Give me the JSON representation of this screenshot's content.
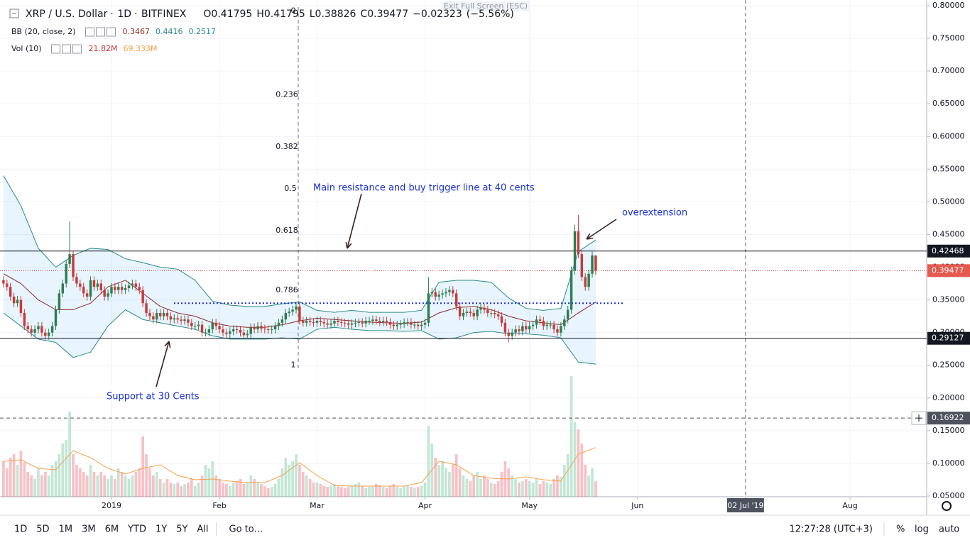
{
  "tooltip": "Exit Full Screen (ESC)",
  "chart_data": {
    "type": "candlestick",
    "title": "XRP / U.S. Dollar",
    "interval": "1D",
    "exchange": "BITFINEX",
    "header": {
      "o": {
        "value": 0.41795,
        "label": "O0.41795"
      },
      "h": {
        "value": 0.41795,
        "label": "H0.41795"
      },
      "l": {
        "value": 0.38826,
        "label": "L0.38826"
      },
      "c": {
        "value": 0.39477,
        "label": "C0.39477"
      },
      "change": {
        "value": -0.02323,
        "label": "−0.02323"
      },
      "pct": {
        "value": -5.56,
        "label": "(−5.56%)"
      }
    },
    "bb_legend": {
      "name": "BB (20, close, 2)",
      "middle": {
        "value": 0.3467,
        "label": "0.3467"
      },
      "upper": {
        "value": 0.4416,
        "label": "0.4416"
      },
      "lower": {
        "value": 0.2517,
        "label": "0.2517"
      }
    },
    "vol_legend": {
      "name": "Vol (10)",
      "value": {
        "value": 21.82,
        "label": "21.82M"
      },
      "ma": {
        "value": 69.333,
        "label": "69.333M"
      }
    },
    "up_color": "#2e7d4f",
    "down_color": "#c83a3a",
    "candles": {
      "open": [
        0.38,
        0.375,
        0.37,
        0.355,
        0.345,
        0.35,
        0.33,
        0.31,
        0.305,
        0.3,
        0.305,
        0.31,
        0.3,
        0.295,
        0.3,
        0.31,
        0.335,
        0.36,
        0.375,
        0.405,
        0.42,
        0.385,
        0.375,
        0.37,
        0.36,
        0.355,
        0.38,
        0.37,
        0.375,
        0.365,
        0.355,
        0.36,
        0.37,
        0.365,
        0.37,
        0.365,
        0.368,
        0.372,
        0.375,
        0.37,
        0.365,
        0.345,
        0.33,
        0.325,
        0.32,
        0.33,
        0.325,
        0.33,
        0.325,
        0.32,
        0.322,
        0.32,
        0.318,
        0.32,
        0.315,
        0.31,
        0.31,
        0.312,
        0.3,
        0.3,
        0.305,
        0.315,
        0.31,
        0.305,
        0.3,
        0.298,
        0.302,
        0.305,
        0.304,
        0.3,
        0.296,
        0.298,
        0.308,
        0.305,
        0.31,
        0.306,
        0.305,
        0.304,
        0.305,
        0.31,
        0.315,
        0.32,
        0.33,
        0.332,
        0.335,
        0.34,
        0.318,
        0.315,
        0.318,
        0.316,
        0.315,
        0.318,
        0.316,
        0.314,
        0.312,
        0.314,
        0.318,
        0.316,
        0.315,
        0.314,
        0.312,
        0.314,
        0.315,
        0.316,
        0.314,
        0.318,
        0.318,
        0.32,
        0.318,
        0.316,
        0.318,
        0.316,
        0.312,
        0.31,
        0.312,
        0.313,
        0.316,
        0.316,
        0.312,
        0.312,
        0.31,
        0.312,
        0.315,
        0.36,
        0.362,
        0.355,
        0.358,
        0.36,
        0.362,
        0.365,
        0.36,
        0.34,
        0.325,
        0.33,
        0.332,
        0.33,
        0.325,
        0.335,
        0.338,
        0.335,
        0.33,
        0.33,
        0.328,
        0.325,
        0.315,
        0.3,
        0.295,
        0.3,
        0.305,
        0.302,
        0.31,
        0.305,
        0.31,
        0.312,
        0.32,
        0.318,
        0.31,
        0.312,
        0.312,
        0.305,
        0.3,
        0.31,
        0.32,
        0.335,
        0.395,
        0.455,
        0.42,
        0.385,
        0.37,
        0.39,
        0.41795
      ],
      "high": [
        0.386,
        0.381,
        0.376,
        0.361,
        0.356,
        0.356,
        0.336,
        0.316,
        0.311,
        0.311,
        0.316,
        0.316,
        0.306,
        0.306,
        0.316,
        0.341,
        0.366,
        0.381,
        0.411,
        0.47,
        0.426,
        0.391,
        0.381,
        0.376,
        0.366,
        0.386,
        0.386,
        0.381,
        0.381,
        0.371,
        0.366,
        0.376,
        0.376,
        0.376,
        0.376,
        0.374,
        0.378,
        0.381,
        0.381,
        0.376,
        0.371,
        0.351,
        0.336,
        0.331,
        0.336,
        0.336,
        0.336,
        0.336,
        0.331,
        0.328,
        0.328,
        0.326,
        0.326,
        0.326,
        0.321,
        0.316,
        0.318,
        0.318,
        0.306,
        0.311,
        0.321,
        0.321,
        0.316,
        0.311,
        0.306,
        0.308,
        0.311,
        0.311,
        0.31,
        0.306,
        0.304,
        0.314,
        0.314,
        0.316,
        0.316,
        0.312,
        0.311,
        0.311,
        0.316,
        0.321,
        0.326,
        0.336,
        0.338,
        0.341,
        0.346,
        0.346,
        0.324,
        0.324,
        0.324,
        0.322,
        0.324,
        0.324,
        0.322,
        0.32,
        0.32,
        0.324,
        0.324,
        0.322,
        0.321,
        0.32,
        0.32,
        0.321,
        0.322,
        0.322,
        0.324,
        0.324,
        0.326,
        0.326,
        0.324,
        0.324,
        0.324,
        0.322,
        0.318,
        0.318,
        0.319,
        0.322,
        0.322,
        0.322,
        0.318,
        0.318,
        0.318,
        0.321,
        0.385,
        0.368,
        0.368,
        0.364,
        0.366,
        0.368,
        0.371,
        0.371,
        0.366,
        0.346,
        0.336,
        0.338,
        0.338,
        0.336,
        0.341,
        0.344,
        0.344,
        0.341,
        0.336,
        0.336,
        0.334,
        0.331,
        0.321,
        0.306,
        0.306,
        0.311,
        0.311,
        0.316,
        0.316,
        0.316,
        0.318,
        0.326,
        0.326,
        0.324,
        0.318,
        0.318,
        0.318,
        0.311,
        0.316,
        0.326,
        0.341,
        0.401,
        0.465,
        0.48,
        0.426,
        0.391,
        0.396,
        0.424,
        0.41795
      ],
      "low": [
        0.369,
        0.364,
        0.349,
        0.339,
        0.339,
        0.324,
        0.304,
        0.299,
        0.294,
        0.294,
        0.299,
        0.294,
        0.289,
        0.289,
        0.294,
        0.304,
        0.329,
        0.354,
        0.369,
        0.399,
        0.379,
        0.369,
        0.364,
        0.354,
        0.349,
        0.349,
        0.364,
        0.364,
        0.359,
        0.349,
        0.349,
        0.354,
        0.359,
        0.359,
        0.359,
        0.359,
        0.362,
        0.366,
        0.364,
        0.359,
        0.339,
        0.324,
        0.319,
        0.314,
        0.314,
        0.319,
        0.319,
        0.319,
        0.314,
        0.314,
        0.314,
        0.312,
        0.312,
        0.309,
        0.304,
        0.304,
        0.304,
        0.294,
        0.294,
        0.294,
        0.299,
        0.304,
        0.299,
        0.294,
        0.292,
        0.292,
        0.296,
        0.298,
        0.294,
        0.29,
        0.29,
        0.292,
        0.299,
        0.299,
        0.3,
        0.299,
        0.298,
        0.298,
        0.299,
        0.304,
        0.309,
        0.314,
        0.324,
        0.326,
        0.329,
        0.312,
        0.309,
        0.309,
        0.31,
        0.309,
        0.309,
        0.31,
        0.308,
        0.306,
        0.306,
        0.308,
        0.31,
        0.309,
        0.308,
        0.306,
        0.306,
        0.308,
        0.309,
        0.308,
        0.308,
        0.312,
        0.312,
        0.312,
        0.31,
        0.31,
        0.31,
        0.306,
        0.304,
        0.304,
        0.306,
        0.307,
        0.31,
        0.306,
        0.306,
        0.304,
        0.304,
        0.306,
        0.309,
        0.354,
        0.349,
        0.349,
        0.352,
        0.354,
        0.356,
        0.354,
        0.334,
        0.319,
        0.319,
        0.324,
        0.324,
        0.319,
        0.319,
        0.329,
        0.329,
        0.324,
        0.324,
        0.322,
        0.319,
        0.309,
        0.294,
        0.285,
        0.289,
        0.294,
        0.296,
        0.296,
        0.299,
        0.299,
        0.304,
        0.306,
        0.312,
        0.304,
        0.304,
        0.306,
        0.299,
        0.294,
        0.294,
        0.304,
        0.314,
        0.329,
        0.389,
        0.414,
        0.379,
        0.364,
        0.364,
        0.384,
        0.38826
      ],
      "close": [
        0.375,
        0.37,
        0.355,
        0.345,
        0.35,
        0.33,
        0.31,
        0.305,
        0.3,
        0.305,
        0.31,
        0.3,
        0.295,
        0.3,
        0.31,
        0.335,
        0.36,
        0.375,
        0.405,
        0.42,
        0.385,
        0.375,
        0.37,
        0.36,
        0.355,
        0.38,
        0.37,
        0.375,
        0.365,
        0.355,
        0.36,
        0.37,
        0.365,
        0.37,
        0.365,
        0.368,
        0.372,
        0.375,
        0.37,
        0.365,
        0.345,
        0.33,
        0.325,
        0.32,
        0.33,
        0.325,
        0.33,
        0.325,
        0.32,
        0.322,
        0.32,
        0.318,
        0.32,
        0.315,
        0.31,
        0.31,
        0.312,
        0.3,
        0.3,
        0.305,
        0.315,
        0.31,
        0.305,
        0.3,
        0.298,
        0.302,
        0.305,
        0.304,
        0.3,
        0.296,
        0.298,
        0.308,
        0.305,
        0.31,
        0.306,
        0.305,
        0.304,
        0.305,
        0.31,
        0.315,
        0.32,
        0.33,
        0.332,
        0.335,
        0.34,
        0.318,
        0.315,
        0.318,
        0.316,
        0.315,
        0.318,
        0.316,
        0.314,
        0.312,
        0.314,
        0.318,
        0.316,
        0.315,
        0.314,
        0.312,
        0.314,
        0.315,
        0.316,
        0.314,
        0.318,
        0.318,
        0.32,
        0.318,
        0.316,
        0.318,
        0.316,
        0.312,
        0.31,
        0.312,
        0.313,
        0.316,
        0.316,
        0.312,
        0.312,
        0.31,
        0.312,
        0.315,
        0.36,
        0.362,
        0.355,
        0.358,
        0.36,
        0.362,
        0.365,
        0.36,
        0.34,
        0.325,
        0.33,
        0.332,
        0.33,
        0.325,
        0.335,
        0.338,
        0.335,
        0.33,
        0.33,
        0.328,
        0.325,
        0.315,
        0.3,
        0.295,
        0.3,
        0.305,
        0.302,
        0.31,
        0.305,
        0.31,
        0.312,
        0.32,
        0.318,
        0.31,
        0.312,
        0.312,
        0.305,
        0.3,
        0.31,
        0.32,
        0.335,
        0.395,
        0.455,
        0.42,
        0.385,
        0.37,
        0.39,
        0.41795,
        0.39477
      ]
    },
    "volume": {
      "ylim": [
        0,
        170
      ],
      "values": [
        50,
        40,
        55,
        60,
        45,
        65,
        48,
        35,
        30,
        25,
        40,
        30,
        35,
        30,
        45,
        50,
        60,
        75,
        80,
        120,
        60,
        45,
        40,
        35,
        30,
        45,
        35,
        30,
        35,
        30,
        25,
        30,
        25,
        40,
        35,
        30,
        25,
        30,
        35,
        40,
        85,
        60,
        40,
        30,
        35,
        25,
        20,
        25,
        20,
        18,
        20,
        15,
        18,
        20,
        25,
        15,
        20,
        30,
        45,
        40,
        50,
        30,
        25,
        20,
        18,
        15,
        20,
        22,
        25,
        18,
        20,
        30,
        25,
        20,
        18,
        15,
        12,
        14,
        18,
        25,
        40,
        55,
        45,
        50,
        60,
        45,
        35,
        30,
        25,
        20,
        20,
        18,
        15,
        14,
        16,
        18,
        15,
        14,
        12,
        14,
        15,
        18,
        20,
        15,
        12,
        14,
        15,
        18,
        16,
        14,
        12,
        15,
        18,
        14,
        12,
        15,
        16,
        14,
        12,
        14,
        15,
        20,
        100,
        75,
        55,
        45,
        50,
        40,
        35,
        45,
        60,
        40,
        30,
        25,
        22,
        30,
        35,
        25,
        30,
        25,
        20,
        18,
        22,
        35,
        50,
        40,
        30,
        25,
        20,
        22,
        25,
        22,
        20,
        25,
        18,
        22,
        20,
        18,
        25,
        30,
        28,
        45,
        60,
        170,
        105,
        95,
        75,
        45,
        30,
        40,
        21.82
      ],
      "ma_color": "#f5a04a",
      "ma": [
        50,
        52,
        40,
        38,
        65,
        55,
        40,
        32,
        40,
        45,
        30,
        24,
        25,
        22,
        20,
        20,
        30,
        48,
        30,
        16,
        15,
        15,
        15,
        15,
        20,
        50,
        45,
        30,
        26,
        25,
        28,
        24,
        22,
        60,
        69.333
      ]
    },
    "bollinger": {
      "fill": "rgba(33,150,243,0.10)",
      "band_color": "#2a8a8a",
      "middle_color": "#8b2a2a",
      "x": [
        0,
        5,
        10,
        15,
        20,
        25,
        30,
        35,
        40,
        45,
        50,
        55,
        60,
        65,
        70,
        75,
        80,
        85,
        90,
        95,
        100,
        105,
        110,
        115,
        120,
        125,
        130,
        135,
        140,
        145,
        150,
        155,
        160,
        165,
        170
      ],
      "upper": [
        0.54,
        0.494,
        0.429,
        0.4,
        0.418,
        0.429,
        0.427,
        0.413,
        0.407,
        0.4,
        0.397,
        0.38,
        0.348,
        0.342,
        0.34,
        0.34,
        0.344,
        0.347,
        0.334,
        0.331,
        0.334,
        0.331,
        0.331,
        0.331,
        0.334,
        0.377,
        0.38,
        0.38,
        0.377,
        0.353,
        0.337,
        0.334,
        0.337,
        0.424,
        0.4416
      ],
      "middle": [
        0.39,
        0.375,
        0.35,
        0.335,
        0.335,
        0.345,
        0.37,
        0.38,
        0.36,
        0.34,
        0.33,
        0.325,
        0.315,
        0.31,
        0.308,
        0.308,
        0.312,
        0.318,
        0.322,
        0.32,
        0.318,
        0.316,
        0.315,
        0.314,
        0.316,
        0.33,
        0.338,
        0.34,
        0.335,
        0.325,
        0.318,
        0.315,
        0.312,
        0.33,
        0.3467
      ],
      "lower": [
        0.33,
        0.31,
        0.29,
        0.285,
        0.262,
        0.27,
        0.31,
        0.335,
        0.32,
        0.315,
        0.31,
        0.305,
        0.295,
        0.29,
        0.29,
        0.29,
        0.292,
        0.29,
        0.305,
        0.308,
        0.305,
        0.303,
        0.303,
        0.302,
        0.303,
        0.29,
        0.292,
        0.3,
        0.302,
        0.298,
        0.298,
        0.296,
        0.292,
        0.255,
        0.2517
      ]
    },
    "ylim": [
      0.05,
      0.8
    ],
    "yticks": [
      {
        "value": 0.8,
        "label": "0.80000"
      },
      {
        "value": 0.75,
        "label": "0.75000"
      },
      {
        "value": 0.7,
        "label": "0.70000"
      },
      {
        "value": 0.65,
        "label": "0.65000"
      },
      {
        "value": 0.6,
        "label": "0.60000"
      },
      {
        "value": 0.55,
        "label": "0.55000"
      },
      {
        "value": 0.5,
        "label": "0.50000"
      },
      {
        "value": 0.45,
        "label": "0.45000"
      },
      {
        "value": 0.4,
        "label": "0.40000"
      },
      {
        "value": 0.35,
        "label": "0.35000"
      },
      {
        "value": 0.3,
        "label": "0.30000"
      },
      {
        "value": 0.25,
        "label": "0.25000"
      },
      {
        "value": 0.2,
        "label": "0.20000"
      },
      {
        "value": 0.15,
        "label": "0.15000"
      },
      {
        "value": 0.1,
        "label": "0.10000"
      },
      {
        "value": 0.05,
        "label": "0.05000"
      }
    ],
    "xlim": [
      -1,
      265
    ],
    "xticks": [
      {
        "value": 31,
        "label": "2019"
      },
      {
        "value": 62,
        "label": "Feb"
      },
      {
        "value": 90,
        "label": "Mar"
      },
      {
        "value": 121,
        "label": "Apr"
      },
      {
        "value": 151,
        "label": "May"
      },
      {
        "value": 182,
        "label": "Jun"
      },
      {
        "value": 213,
        "label": "02 Jul '19"
      },
      {
        "value": 243,
        "label": "Aug"
      }
    ],
    "price_lines": [
      {
        "value": 0.42468,
        "color": "#131722"
      },
      {
        "value": 0.39477,
        "color": "#c83a3a"
      },
      {
        "value": 0.29127,
        "color": "#131722"
      },
      {
        "value": 0.16922,
        "color": "#555555"
      }
    ],
    "blue_line": {
      "value": 0.345,
      "color": "#1a2fd6"
    },
    "fib_levels": [
      {
        "label": "0",
        "value": 0.792
      },
      {
        "label": "0.236",
        "value": 0.664
      },
      {
        "label": "0.382",
        "value": 0.584
      },
      {
        "label": "0.5",
        "value": 0.52
      },
      {
        "label": "0.618",
        "value": 0.456
      },
      {
        "label": "0.786",
        "value": 0.365
      },
      {
        "label": "1",
        "value": 0.25
      }
    ],
    "annotations": [
      "Main resistance and buy trigger line at 40 cents",
      "overextension",
      "Support at 30 Cents"
    ]
  },
  "toolbar": {
    "ranges": [
      "1D",
      "5D",
      "1M",
      "3M",
      "6M",
      "YTD",
      "1Y",
      "5Y",
      "All"
    ],
    "goto": "Go to...",
    "clock": "12:27:28 (UTC+3)",
    "options": [
      "%",
      "log",
      "auto"
    ]
  }
}
